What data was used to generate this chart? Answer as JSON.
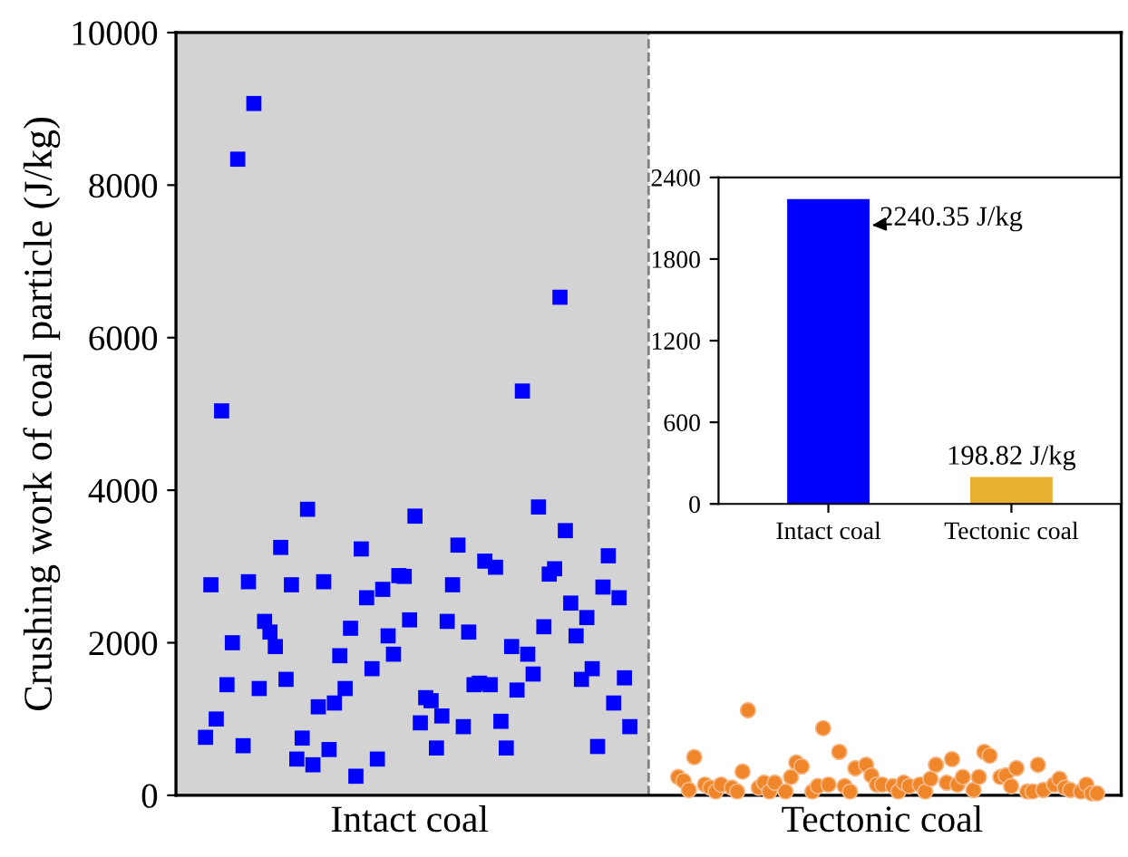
{
  "chart_data": [
    {
      "type": "scatter",
      "ylabel": "Crushing work of coal particle (J/kg)",
      "ylim": [
        0,
        10000
      ],
      "yticks": [
        0,
        2000,
        4000,
        6000,
        8000,
        10000
      ],
      "grid": false,
      "legend": false,
      "categories": [
        null,
        null,
        null,
        null,
        null,
        null,
        null,
        null,
        null,
        null,
        null,
        null,
        null,
        null,
        null,
        null,
        null,
        null,
        null,
        null,
        null,
        null,
        null,
        null,
        null,
        null,
        null,
        null,
        null,
        null,
        null,
        null,
        null,
        null,
        null,
        null,
        null,
        null,
        null,
        null,
        null,
        null,
        null,
        "Intact coal",
        null,
        null,
        null,
        null,
        null,
        null,
        null,
        null,
        null,
        null,
        null,
        null,
        null,
        null,
        null,
        null,
        null,
        null,
        null,
        null,
        null,
        null,
        null,
        null,
        null,
        null,
        null,
        null,
        null,
        null,
        null,
        null,
        null,
        null,
        null,
        null,
        null,
        null,
        null,
        null,
        null,
        null,
        null,
        null,
        null,
        null,
        null,
        null,
        null,
        null,
        null,
        null,
        null,
        null,
        null,
        null,
        null,
        null,
        null,
        null,
        null,
        null,
        null,
        null,
        null,
        null,
        null,
        null,
        null,
        null,
        null,
        null,
        null,
        null,
        null,
        null,
        null,
        null,
        null,
        null,
        null,
        null,
        null,
        null,
        null,
        null,
        null,
        "Tectonic coal",
        null,
        null,
        null,
        null,
        null,
        null,
        null,
        null,
        null,
        null,
        null,
        null,
        null,
        null,
        null,
        null,
        null,
        null,
        null,
        null,
        null,
        null,
        null,
        null,
        null,
        null,
        null,
        null,
        null,
        null,
        null,
        null,
        null,
        null,
        null,
        null,
        null,
        null,
        null,
        null,
        null,
        null,
        null,
        null
      ],
      "series": [
        {
          "color": "#0000ff",
          "marker": "square",
          "values": [
            null,
            null,
            null,
            null,
            null,
            760,
            2760,
            1000,
            5040,
            1450,
            2000,
            8340,
            650,
            2800,
            9070,
            1400,
            2280,
            2140,
            1950,
            3250,
            1520,
            2760,
            475,
            750,
            3750,
            400,
            1160,
            2800,
            600,
            1210,
            1830,
            1400,
            2190,
            250,
            3230,
            2590,
            1660,
            475,
            2700,
            2090,
            1850,
            2880,
            2870,
            2300,
            3660,
            950,
            1280,
            1240,
            620,
            1040,
            2280,
            2760,
            3280,
            900,
            2140,
            1450,
            1470,
            3070,
            1450,
            2990,
            970,
            620,
            1950,
            1380,
            5300,
            1850,
            1590,
            3780,
            2210,
            2900,
            2970,
            6530,
            3470,
            2520,
            2090,
            1520,
            2330,
            1660,
            640,
            2730,
            3140,
            1210,
            2590,
            1540,
            900,
            null,
            null,
            null,
            null,
            null,
            null,
            null,
            null,
            null,
            null,
            null,
            null,
            null,
            null,
            null,
            null,
            null,
            null,
            null,
            null,
            null,
            null,
            null,
            null,
            null,
            null,
            null,
            null,
            null,
            null,
            null,
            null,
            null,
            null,
            null,
            null,
            null,
            null,
            null,
            null,
            null,
            null,
            null,
            null,
            null,
            null,
            null,
            null,
            null,
            null,
            null,
            null,
            null,
            null,
            null,
            null,
            null,
            null,
            null,
            null,
            null,
            null,
            null,
            null,
            null,
            null,
            null,
            null,
            null,
            null,
            null,
            null,
            null,
            null,
            null,
            null,
            null,
            null,
            null,
            null,
            null,
            null,
            null,
            null,
            null,
            null,
            null,
            null,
            null,
            null,
            null
          ]
        },
        {
          "color": "#f0862a",
          "marker": "circle",
          "values": [
            null,
            null,
            null,
            null,
            null,
            null,
            null,
            null,
            null,
            null,
            null,
            null,
            null,
            null,
            null,
            null,
            null,
            null,
            null,
            null,
            null,
            null,
            null,
            null,
            null,
            null,
            null,
            null,
            null,
            null,
            null,
            null,
            null,
            null,
            null,
            null,
            null,
            null,
            null,
            null,
            null,
            null,
            null,
            null,
            null,
            null,
            null,
            null,
            null,
            null,
            null,
            null,
            null,
            null,
            null,
            null,
            null,
            null,
            null,
            null,
            null,
            null,
            null,
            null,
            null,
            null,
            null,
            null,
            null,
            null,
            null,
            null,
            null,
            null,
            null,
            null,
            null,
            null,
            null,
            null,
            null,
            null,
            null,
            null,
            null,
            null,
            null,
            null,
            null,
            null,
            null,
            null,
            null,
            240,
            190,
            70,
            500,
            null,
            140,
            100,
            50,
            140,
            null,
            100,
            50,
            310,
            1115,
            null,
            100,
            165,
            50,
            165,
            null,
            50,
            240,
            430,
            380,
            null,
            50,
            120,
            880,
            140,
            null,
            570,
            120,
            50,
            355,
            null,
            400,
            260,
            140,
            140,
            null,
            120,
            50,
            165,
            120,
            null,
            140,
            50,
            215,
            400,
            null,
            165,
            475,
            140,
            240,
            null,
            70,
            240,
            570,
            520,
            null,
            240,
            260,
            120,
            355,
            null,
            50,
            50,
            400,
            70,
            null,
            140,
            215,
            100,
            70,
            null,
            50,
            140,
            25,
            25,
            null,
            null,
            null,
            null
          ]
        }
      ]
    },
    {
      "type": "bar",
      "categories": [
        "Intact coal",
        "Tectonic coal"
      ],
      "values": [
        2240.35,
        198.82
      ],
      "colors": [
        "#0000ff",
        "#e8b030"
      ],
      "ylim": [
        0,
        2400
      ],
      "yticks": [
        0,
        600,
        1200,
        1800,
        2400
      ],
      "grid": false,
      "legend": false,
      "value_labels": [
        "2240.35 J/kg",
        "198.82 J/kg"
      ]
    }
  ]
}
